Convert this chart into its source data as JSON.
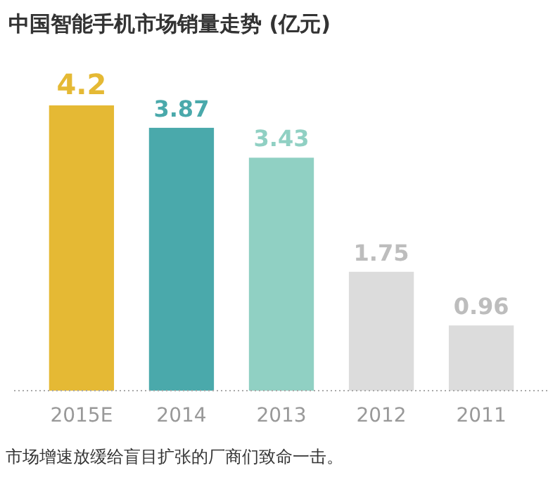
{
  "chart_data": {
    "type": "bar",
    "title": "中国智能手机市场销量走势 (亿元)",
    "categories": [
      "2015E",
      "2014",
      "2013",
      "2012",
      "2011"
    ],
    "values": [
      4.2,
      3.87,
      3.43,
      1.75,
      0.96
    ],
    "colors": [
      "#e5b934",
      "#4aa9ab",
      "#90d0c3",
      "#dcdcdc",
      "#dcdcdc"
    ],
    "data_labels": true,
    "annotations": [
      "市场增速放缓给盲目扩张的厂商们致命一击。"
    ]
  }
}
